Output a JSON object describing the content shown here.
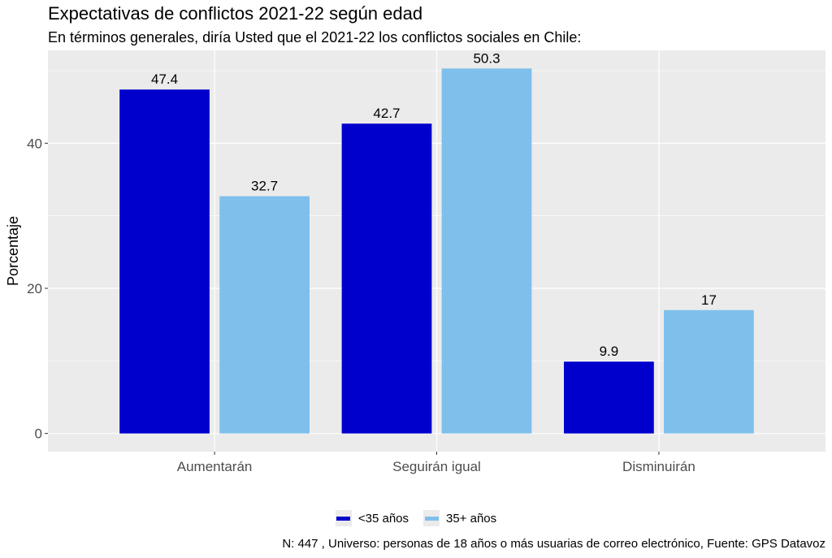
{
  "chart_data": {
    "type": "bar",
    "title": "Expectativas de conflictos 2021-22 según edad",
    "subtitle": "En términos generales, diría Usted que el 2021-22 los conflictos sociales en Chile:",
    "ylabel": "Porcentaje",
    "xlabel": "",
    "categories": [
      "Aumentarán",
      "Seguirán igual",
      "Disminuirán"
    ],
    "series": [
      {
        "name": "<35 años",
        "color": "#0000CD",
        "values": [
          47.4,
          42.7,
          9.9
        ],
        "labels": [
          "47.4",
          "42.7",
          "9.9"
        ]
      },
      {
        "name": "35+ años",
        "color": "#7FBFEC",
        "values": [
          32.7,
          50.3,
          17
        ],
        "labels": [
          "32.7",
          "50.3",
          "17"
        ]
      }
    ],
    "ylim": [
      -2.5,
      52.8
    ],
    "yticks": [
      0,
      20,
      40
    ],
    "ytick_labels": [
      "0",
      "20",
      "40"
    ],
    "grid": true,
    "legend_position": "bottom",
    "caption": "N: 447 , Universo: personas de 18 años o más usuarias de correo electrónico, Fuente: GPS Datavoz"
  }
}
